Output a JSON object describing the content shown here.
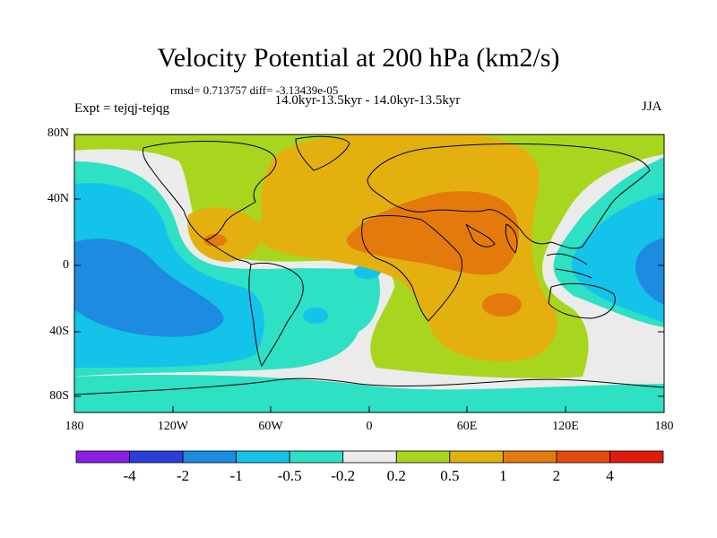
{
  "header": {
    "title": "Velocity Potential at 200 hPa (km2/s)",
    "stats": "rmsd= 0.713757 diff= -3.13439e-05",
    "period": "14.0kyr-13.5kyr - 14.0kyr-13.5kyr",
    "experiment": "Expt = tejqj-tejqg",
    "season": "JJA"
  },
  "axes": {
    "y_ticks": [
      "80N",
      "40N",
      "0",
      "40S",
      "80S"
    ],
    "x_ticks": [
      "180",
      "120W",
      "60W",
      "0",
      "60E",
      "120E",
      "180"
    ]
  },
  "colorbar": {
    "labels": [
      "-4",
      "-2",
      "-1",
      "-0.5",
      "-0.2",
      "0.2",
      "0.5",
      "1",
      "2",
      "4"
    ],
    "colors": [
      "#8c1ee6",
      "#2a3fd6",
      "#1c8be0",
      "#13c3ea",
      "#2ee0c4",
      "#ebebeb",
      "#a8d61e",
      "#e3b010",
      "#e57a0c",
      "#e44b0c",
      "#e11a0d"
    ]
  },
  "map_colors": {
    "minus_4": "#8c1ee6",
    "minus_2": "#2a3fd6",
    "minus_1": "#1c8be0",
    "minus_05": "#13c3ea",
    "minus_02": "#2ee0c4",
    "zero": "#ebebeb",
    "plus_02": "#a8d61e",
    "plus_05": "#e3b010",
    "plus_1": "#e57a0c",
    "plus_2": "#e44b0c"
  }
}
